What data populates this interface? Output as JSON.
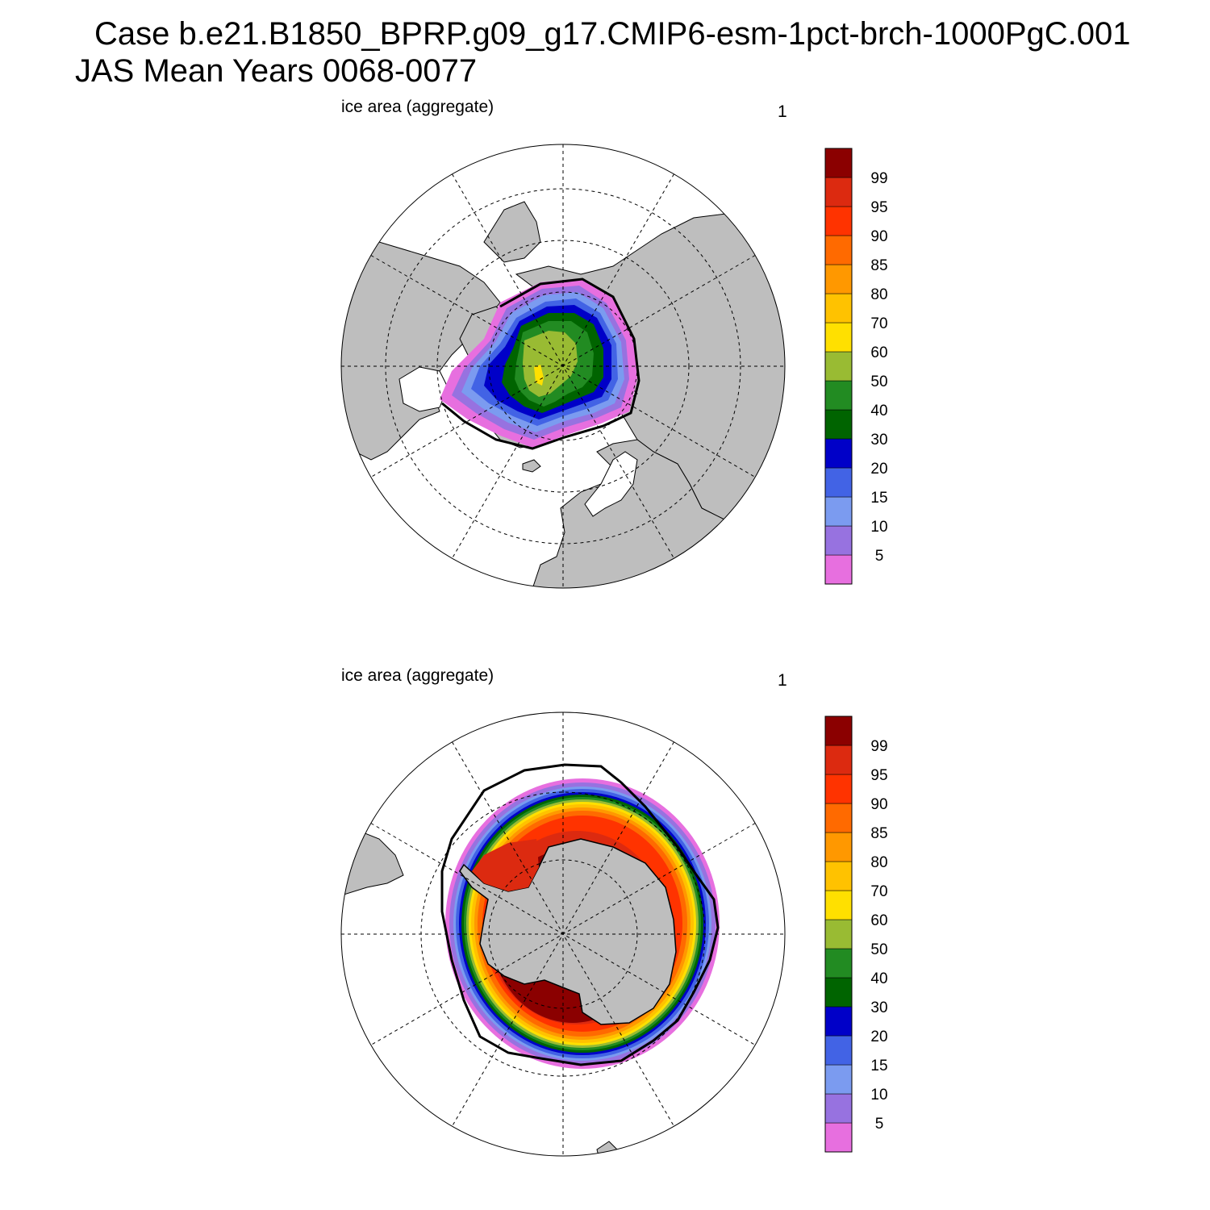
{
  "header": {
    "line1": "Case b.e21.B1850_BPRP.g09_g17.CMIP6-esm-1pct-brch-1000PgC.001",
    "line2": "JAS Mean   Years 0068-0077"
  },
  "colors": {
    "land": "#bebebe",
    "ocean": "#ffffff",
    "levels": [
      "#e76fdf",
      "#9772e0",
      "#7b9bf0",
      "#4263e5",
      "#0000c8",
      "#006400",
      "#228b22",
      "#99bb33",
      "#ffe000",
      "#ffc200",
      "#ff9800",
      "#ff6a00",
      "#ff3300",
      "#dc2a10",
      "#8b0000"
    ]
  },
  "colorbar": {
    "labels": [
      "5",
      "10",
      "15",
      "20",
      "30",
      "40",
      "50",
      "60",
      "70",
      "80",
      "85",
      "90",
      "95",
      "99"
    ]
  },
  "panels": [
    {
      "id": "north",
      "left_label": "ice area  (aggregate)",
      "right_label": "1",
      "hemisphere": "Arctic"
    },
    {
      "id": "south",
      "left_label": "ice area  (aggregate)",
      "right_label": "1",
      "hemisphere": "Antarctic"
    }
  ]
}
